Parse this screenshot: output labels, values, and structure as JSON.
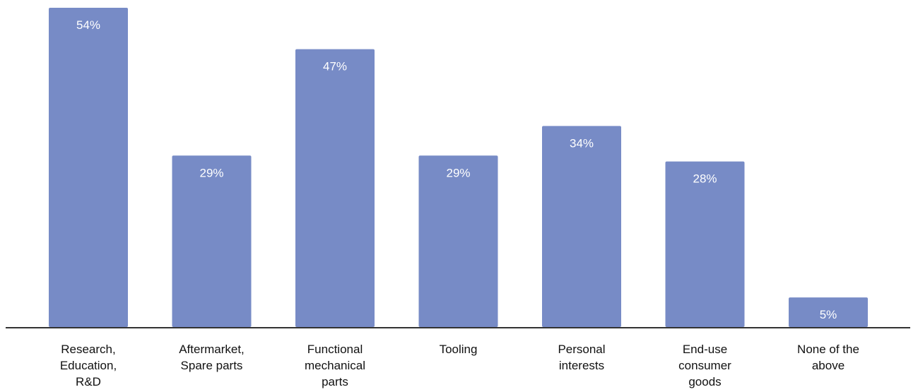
{
  "chart_data": {
    "type": "bar",
    "title": "",
    "xlabel": "",
    "ylabel": "",
    "ylim": [
      0,
      54
    ],
    "grid": false,
    "legend": "none",
    "bar_color": "#778bc6",
    "label_color": "#ffffff",
    "categories": [
      [
        "Research,",
        "Education,",
        "R&D"
      ],
      [
        "Aftermarket,",
        "Spare parts"
      ],
      [
        "Functional",
        "mechanical",
        "parts"
      ],
      [
        "Tooling"
      ],
      [
        "Personal",
        "interests"
      ],
      [
        "End-use",
        "consumer",
        "goods"
      ],
      [
        "None of the",
        "above"
      ]
    ],
    "values": [
      54,
      29,
      47,
      29,
      34,
      28,
      5
    ],
    "data_labels": [
      "54%",
      "29%",
      "47%",
      "29%",
      "34%",
      "28%",
      "5%"
    ]
  }
}
